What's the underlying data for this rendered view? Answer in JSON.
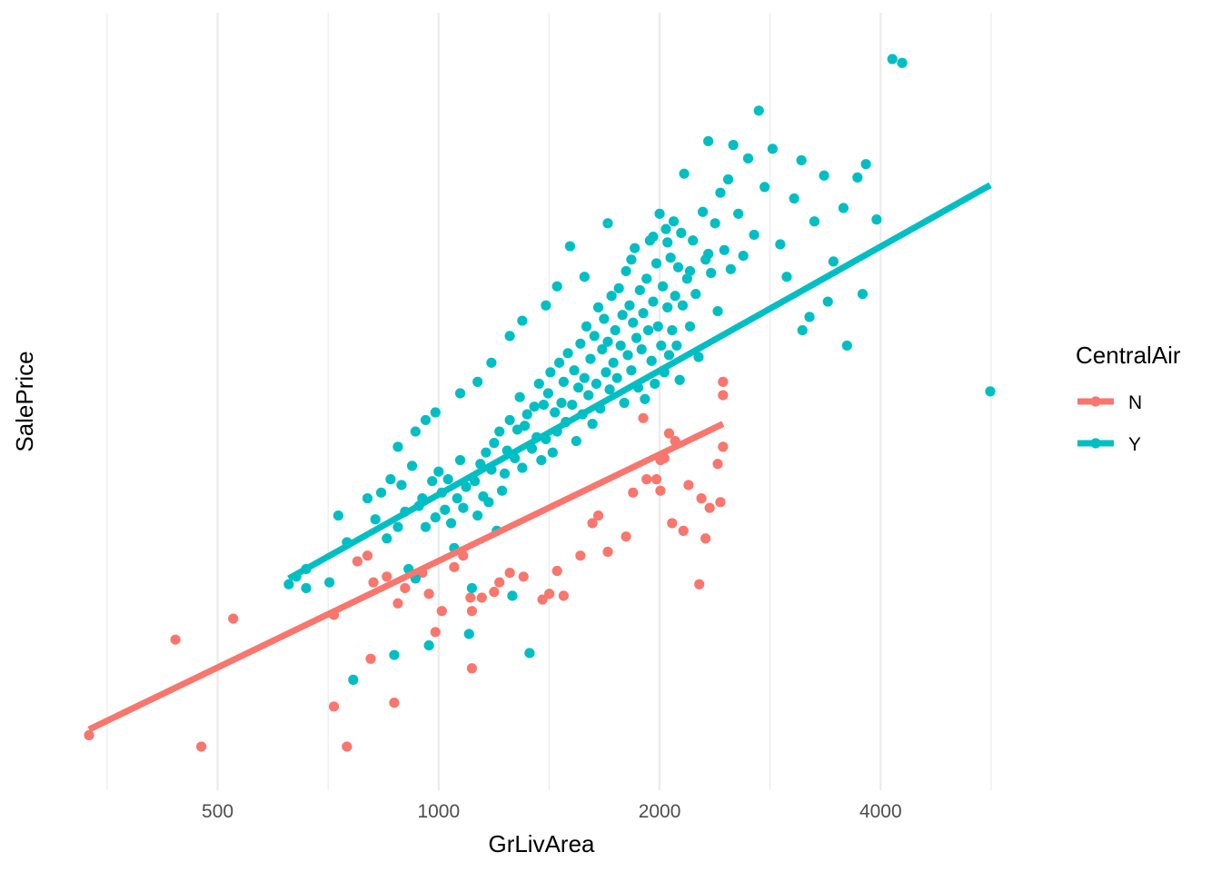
{
  "chart_data": {
    "type": "scatter",
    "xlabel": "GrLivArea",
    "ylabel": "SalePrice",
    "x_scale": "log2",
    "x_ticks": [
      500,
      1000,
      2000,
      4000
    ],
    "xlim": [
      334,
      5642
    ],
    "grid": "vertical",
    "legend": {
      "title": "CentralAir",
      "position": "right"
    },
    "series": [
      {
        "name": "N",
        "color": "#F8766D",
        "trend": {
          "x": [
            334,
            2440
          ],
          "y": [
            10.49,
            12.09
          ]
        },
        "points": [
          [
            334,
            10.46
          ],
          [
            438,
            10.96
          ],
          [
            475,
            10.4
          ],
          [
            525,
            11.07
          ],
          [
            720,
            10.61
          ],
          [
            750,
            10.4
          ],
          [
            720,
            11.09
          ],
          [
            775,
            11.37
          ],
          [
            800,
            11.4
          ],
          [
            815,
            11.26
          ],
          [
            808,
            10.86
          ],
          [
            850,
            11.29
          ],
          [
            900,
            11.23
          ],
          [
            870,
            10.63
          ],
          [
            880,
            11.15
          ],
          [
            950,
            11.31
          ],
          [
            970,
            11.2
          ],
          [
            990,
            11.0
          ],
          [
            1010,
            11.11
          ],
          [
            1050,
            11.34
          ],
          [
            1080,
            11.4
          ],
          [
            1105,
            11.18
          ],
          [
            1110,
            11.11
          ],
          [
            1110,
            10.81
          ],
          [
            1145,
            11.18
          ],
          [
            1190,
            11.21
          ],
          [
            1210,
            11.26
          ],
          [
            1250,
            11.31
          ],
          [
            1305,
            11.29
          ],
          [
            1415,
            11.2
          ],
          [
            1385,
            11.17
          ],
          [
            1450,
            11.32
          ],
          [
            1480,
            11.19
          ],
          [
            1560,
            11.4
          ],
          [
            1620,
            11.57
          ],
          [
            1650,
            11.61
          ],
          [
            1700,
            11.42
          ],
          [
            1800,
            11.5
          ],
          [
            1840,
            11.73
          ],
          [
            1920,
            11.8
          ],
          [
            1980,
            11.8
          ],
          [
            2030,
            11.91
          ],
          [
            2005,
            11.9
          ],
          [
            2005,
            11.74
          ],
          [
            2100,
            12.0
          ],
          [
            2190,
            11.77
          ],
          [
            2280,
            11.7
          ],
          [
            2400,
            11.88
          ],
          [
            2440,
            11.97
          ],
          [
            2440,
            12.24
          ],
          [
            2080,
            11.57
          ],
          [
            2155,
            11.53
          ],
          [
            2265,
            11.25
          ],
          [
            2310,
            11.49
          ],
          [
            2340,
            11.65
          ],
          [
            2420,
            11.68
          ],
          [
            2440,
            12.31
          ],
          [
            2060,
            12.04
          ],
          [
            1900,
            12.12
          ]
        ]
      },
      {
        "name": "Y",
        "color": "#00BFC4",
        "trend": {
          "x": [
            625,
            5642
          ],
          "y": [
            11.28,
            13.34
          ]
        },
        "points": [
          [
            625,
            11.25
          ],
          [
            640,
            11.29
          ],
          [
            660,
            11.23
          ],
          [
            660,
            11.33
          ],
          [
            710,
            11.26
          ],
          [
            730,
            11.61
          ],
          [
            750,
            11.47
          ],
          [
            765,
            10.75
          ],
          [
            800,
            11.7
          ],
          [
            820,
            11.59
          ],
          [
            835,
            11.73
          ],
          [
            850,
            11.49
          ],
          [
            860,
            11.8
          ],
          [
            870,
            10.88
          ],
          [
            880,
            11.55
          ],
          [
            890,
            11.77
          ],
          [
            900,
            11.63
          ],
          [
            910,
            11.33
          ],
          [
            920,
            11.87
          ],
          [
            930,
            11.28
          ],
          [
            940,
            11.66
          ],
          [
            950,
            11.7
          ],
          [
            960,
            11.55
          ],
          [
            970,
            10.93
          ],
          [
            980,
            11.79
          ],
          [
            990,
            11.6
          ],
          [
            1000,
            11.84
          ],
          [
            1010,
            11.73
          ],
          [
            1020,
            11.64
          ],
          [
            1030,
            11.8
          ],
          [
            1040,
            11.57
          ],
          [
            1050,
            11.44
          ],
          [
            1060,
            11.7
          ],
          [
            1070,
            11.9
          ],
          [
            1080,
            11.65
          ],
          [
            1090,
            11.76
          ],
          [
            1100,
            10.99
          ],
          [
            1110,
            11.23
          ],
          [
            1120,
            11.79
          ],
          [
            1130,
            11.61
          ],
          [
            1140,
            11.88
          ],
          [
            1150,
            11.71
          ],
          [
            1160,
            11.94
          ],
          [
            1170,
            11.68
          ],
          [
            1180,
            11.85
          ],
          [
            1190,
            11.99
          ],
          [
            1200,
            11.53
          ],
          [
            1210,
            12.05
          ],
          [
            1220,
            11.74
          ],
          [
            1230,
            11.83
          ],
          [
            1240,
            11.95
          ],
          [
            1250,
            12.11
          ],
          [
            1260,
            11.19
          ],
          [
            1270,
            11.91
          ],
          [
            1280,
            12.06
          ],
          [
            1290,
            12.23
          ],
          [
            1300,
            11.86
          ],
          [
            1310,
            12.08
          ],
          [
            1320,
            12.14
          ],
          [
            1330,
            10.89
          ],
          [
            1340,
            11.96
          ],
          [
            1350,
            12.18
          ],
          [
            1360,
            12.02
          ],
          [
            1370,
            12.3
          ],
          [
            1380,
            11.9
          ],
          [
            1390,
            12.19
          ],
          [
            1400,
            12.01
          ],
          [
            1410,
            12.25
          ],
          [
            1420,
            12.36
          ],
          [
            1430,
            11.94
          ],
          [
            1440,
            12.15
          ],
          [
            1450,
            12.05
          ],
          [
            1460,
            12.41
          ],
          [
            1470,
            12.2
          ],
          [
            1480,
            12.31
          ],
          [
            1490,
            12.1
          ],
          [
            1500,
            12.46
          ],
          [
            1510,
            13.02
          ],
          [
            1520,
            12.19
          ],
          [
            1530,
            12.37
          ],
          [
            1540,
            12.0
          ],
          [
            1550,
            12.28
          ],
          [
            1560,
            12.51
          ],
          [
            1570,
            12.14
          ],
          [
            1580,
            12.33
          ],
          [
            1590,
            12.6
          ],
          [
            1600,
            12.24
          ],
          [
            1610,
            12.43
          ],
          [
            1620,
            12.09
          ],
          [
            1630,
            12.55
          ],
          [
            1640,
            12.3
          ],
          [
            1650,
            12.7
          ],
          [
            1660,
            12.17
          ],
          [
            1670,
            12.48
          ],
          [
            1680,
            12.64
          ],
          [
            1690,
            12.36
          ],
          [
            1700,
            12.52
          ],
          [
            1710,
            12.27
          ],
          [
            1720,
            12.76
          ],
          [
            1730,
            12.41
          ],
          [
            1740,
            12.58
          ],
          [
            1750,
            12.33
          ],
          [
            1760,
            12.8
          ],
          [
            1770,
            12.5
          ],
          [
            1780,
            12.66
          ],
          [
            1790,
            12.2
          ],
          [
            1800,
            12.89
          ],
          [
            1810,
            12.45
          ],
          [
            1820,
            12.71
          ],
          [
            1830,
            12.37
          ],
          [
            1840,
            12.62
          ],
          [
            1850,
            13.01
          ],
          [
            1860,
            12.54
          ],
          [
            1870,
            12.28
          ],
          [
            1880,
            12.79
          ],
          [
            1890,
            12.48
          ],
          [
            1900,
            12.67
          ],
          [
            1910,
            12.22
          ],
          [
            1920,
            12.85
          ],
          [
            1930,
            12.58
          ],
          [
            1940,
            13.05
          ],
          [
            1950,
            12.42
          ],
          [
            1960,
            12.73
          ],
          [
            1970,
            12.3
          ],
          [
            1980,
            12.93
          ],
          [
            1990,
            12.6
          ],
          [
            2000,
            13.19
          ],
          [
            2010,
            12.5
          ],
          [
            2020,
            12.81
          ],
          [
            2030,
            12.36
          ],
          [
            2040,
            13.11
          ],
          [
            2050,
            12.7
          ],
          [
            2060,
            12.45
          ],
          [
            2070,
            12.96
          ],
          [
            2080,
            12.58
          ],
          [
            2090,
            13.15
          ],
          [
            2100,
            12.76
          ],
          [
            2110,
            12.5
          ],
          [
            2120,
            12.91
          ],
          [
            2130,
            12.32
          ],
          [
            2140,
            13.09
          ],
          [
            2150,
            12.71
          ],
          [
            2160,
            13.4
          ],
          [
            2180,
            12.85
          ],
          [
            2200,
            12.6
          ],
          [
            2220,
            13.05
          ],
          [
            2240,
            12.77
          ],
          [
            2260,
            12.44
          ],
          [
            2290,
            13.2
          ],
          [
            2310,
            12.95
          ],
          [
            2330,
            13.57
          ],
          [
            2350,
            12.88
          ],
          [
            2380,
            13.14
          ],
          [
            2400,
            12.68
          ],
          [
            2420,
            13.3
          ],
          [
            2450,
            13.0
          ],
          [
            2480,
            13.37
          ],
          [
            2500,
            12.9
          ],
          [
            2520,
            13.55
          ],
          [
            2560,
            13.19
          ],
          [
            2600,
            12.97
          ],
          [
            2640,
            13.48
          ],
          [
            2690,
            13.08
          ],
          [
            2730,
            13.73
          ],
          [
            2780,
            13.33
          ],
          [
            2850,
            13.53
          ],
          [
            2920,
            13.03
          ],
          [
            2980,
            12.86
          ],
          [
            3050,
            13.27
          ],
          [
            3120,
            13.47
          ],
          [
            3130,
            12.58
          ],
          [
            3200,
            12.65
          ],
          [
            3250,
            13.15
          ],
          [
            3350,
            13.39
          ],
          [
            3450,
            12.94
          ],
          [
            3560,
            13.22
          ],
          [
            3720,
            13.38
          ],
          [
            3780,
            12.77
          ],
          [
            3820,
            13.45
          ],
          [
            4150,
            14.0
          ],
          [
            4280,
            13.98
          ],
          [
            3950,
            13.16
          ],
          [
            3600,
            12.5
          ],
          [
            3390,
            12.73
          ],
          [
            5642,
            12.26
          ],
          [
            2330,
            12.98
          ],
          [
            2200,
            12.89
          ],
          [
            2050,
            13.04
          ],
          [
            1960,
            13.07
          ],
          [
            1830,
            12.95
          ],
          [
            1700,
            13.14
          ],
          [
            1580,
            12.86
          ],
          [
            1450,
            12.81
          ],
          [
            1400,
            12.71
          ],
          [
            1300,
            12.63
          ],
          [
            1250,
            12.55
          ],
          [
            1180,
            12.41
          ],
          [
            1130,
            12.31
          ],
          [
            1070,
            12.25
          ],
          [
            990,
            12.15
          ],
          [
            960,
            12.11
          ],
          [
            930,
            12.05
          ],
          [
            880,
            11.97
          ]
        ]
      }
    ]
  }
}
